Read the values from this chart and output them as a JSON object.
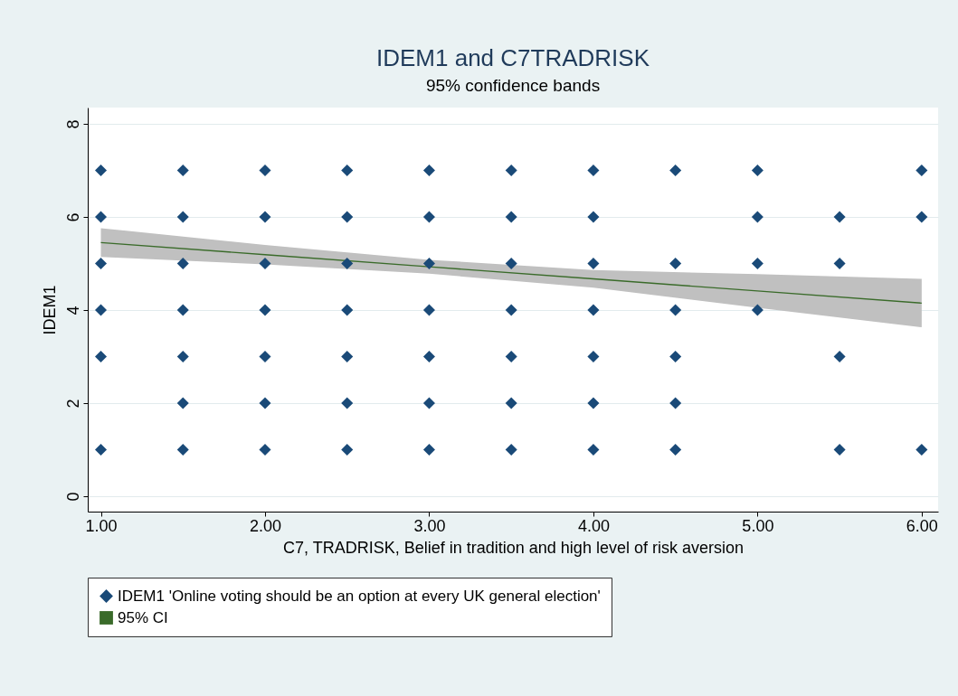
{
  "chart_data": {
    "type": "scatter",
    "title": "IDEM1 and C7TRADRISK",
    "subtitle": "95% confidence bands",
    "xlabel": "C7, TRADRISK, Belief in tradition and high level of risk aversion",
    "ylabel": "IDEM1",
    "xlim": [
      0.92,
      6.1
    ],
    "xticks": [
      {
        "value": 1,
        "label": "1.00"
      },
      {
        "value": 2,
        "label": "2.00"
      },
      {
        "value": 3,
        "label": "3.00"
      },
      {
        "value": 4,
        "label": "4.00"
      },
      {
        "value": 5,
        "label": "5.00"
      },
      {
        "value": 6,
        "label": "6.00"
      }
    ],
    "ylim": [
      -0.33,
      8.35
    ],
    "yticks": [
      0,
      2,
      4,
      6,
      8
    ],
    "grid": "y",
    "legend": "bottom",
    "series": [
      {
        "type": "line",
        "name": "95% CI",
        "color": "#3a6b2a",
        "x": [
          1,
          2,
          3,
          4,
          5,
          6
        ],
        "values": [
          5.45,
          5.19,
          4.93,
          4.67,
          4.41,
          4.15
        ],
        "lower": [
          5.14,
          4.98,
          4.78,
          4.48,
          4.05,
          3.63
        ],
        "upper": [
          5.76,
          5.4,
          5.08,
          4.86,
          4.77,
          4.67
        ]
      },
      {
        "marker": "diamond",
        "name": "IDEM1 'Online voting should be an option at every UK general election'",
        "color": "#1a4a78",
        "x": [
          1,
          1,
          1,
          1,
          1,
          1,
          1.5,
          1.5,
          1.5,
          1.5,
          1.5,
          1.5,
          1.5,
          2,
          2,
          2,
          2,
          2,
          2,
          2,
          2.5,
          2.5,
          2.5,
          2.5,
          2.5,
          2.5,
          2.5,
          3,
          3,
          3,
          3,
          3,
          3,
          3,
          3.5,
          3.5,
          3.5,
          3.5,
          3.5,
          3.5,
          3.5,
          4,
          4,
          4,
          4,
          4,
          4,
          4,
          4.5,
          4.5,
          4.5,
          4.5,
          4.5,
          4.5,
          5,
          5,
          5,
          5,
          5.5,
          5.5,
          5.5,
          5.5,
          6,
          6,
          6
        ],
        "values": [
          7,
          6,
          5,
          4,
          3,
          1,
          7,
          6,
          5,
          4,
          3,
          2,
          1,
          7,
          6,
          5,
          4,
          3,
          2,
          1,
          7,
          6,
          5,
          4,
          3,
          2,
          1,
          7,
          6,
          5,
          4,
          3,
          2,
          1,
          7,
          6,
          5,
          4,
          3,
          2,
          1,
          7,
          6,
          5,
          4,
          3,
          2,
          1,
          7,
          5,
          4,
          3,
          2,
          1,
          7,
          6,
          5,
          4,
          6,
          5,
          3,
          1,
          7,
          6,
          1
        ]
      }
    ]
  }
}
